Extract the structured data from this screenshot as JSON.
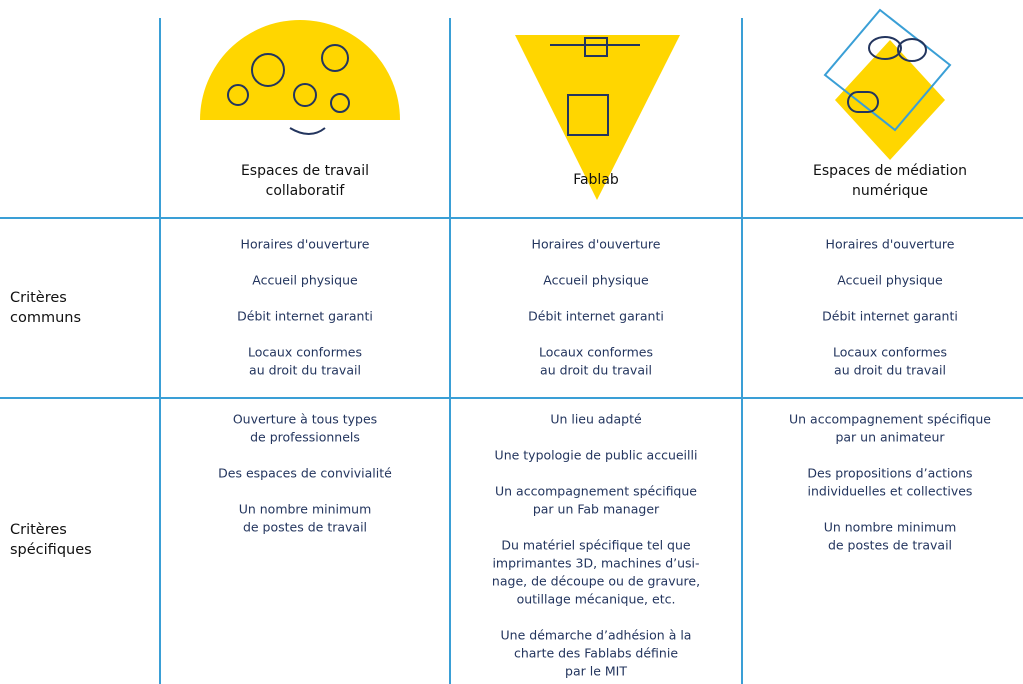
{
  "columns": [
    {
      "title": [
        "Espaces de travail",
        "collaboratif"
      ]
    },
    {
      "title": [
        "Fablab"
      ]
    },
    {
      "title": [
        "Espaces de médiation",
        "numérique"
      ]
    }
  ],
  "rows": [
    {
      "label": [
        "Critères",
        "communs"
      ],
      "cells": [
        [
          [
            "Horaires d'ouverture"
          ],
          [
            "Accueil physique"
          ],
          [
            "Débit internet garanti"
          ],
          [
            "Locaux conformes",
            "au droit du travail"
          ]
        ],
        [
          [
            "Horaires d'ouverture"
          ],
          [
            "Accueil physique"
          ],
          [
            "Débit internet garanti"
          ],
          [
            "Locaux conformes",
            "au droit du travail"
          ]
        ],
        [
          [
            "Horaires d'ouverture"
          ],
          [
            "Accueil physique"
          ],
          [
            "Débit internet garanti"
          ],
          [
            "Locaux conformes",
            "au droit du travail"
          ]
        ]
      ]
    },
    {
      "label": [
        "Critères",
        "spécifiques"
      ],
      "cells": [
        [
          [
            "Ouverture à tous types",
            "de professionnels"
          ],
          [
            "Des espaces de convivialité"
          ],
          [
            "Un nombre minimum",
            "de postes de travail"
          ]
        ],
        [
          [
            "Un lieu adapté"
          ],
          [
            "Une typologie de public accueilli"
          ],
          [
            "Un accompagnement spécifique",
            "par un Fab manager"
          ],
          [
            "Du matériel spécifique tel que",
            "imprimantes 3D, machines d’usi-",
            "nage, de découpe ou de gravure,",
            "outillage mécanique, etc."
          ],
          [
            "Une démarche d’adhésion à la",
            "charte des Fablabs définie",
            "par le MIT"
          ]
        ],
        [
          [
            "Un accompagnement spécifique",
            "par un animateur"
          ],
          [
            "Des propositions d’actions",
            "individuelles et collectives"
          ],
          [
            "Un nombre minimum",
            "de postes de travail"
          ]
        ]
      ]
    }
  ]
}
